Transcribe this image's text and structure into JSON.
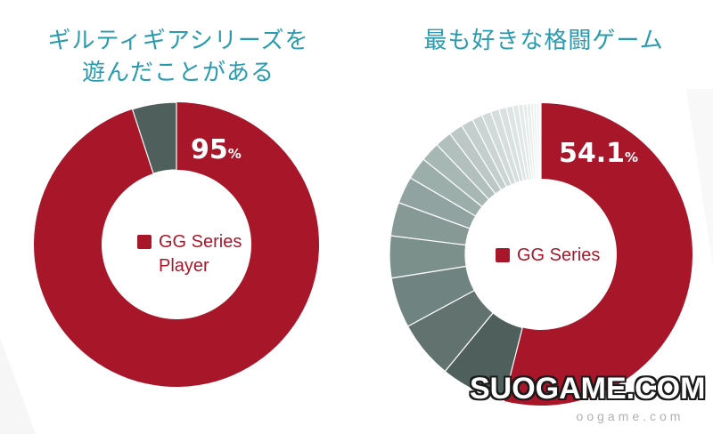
{
  "colors": {
    "title": "#2a9bae",
    "gg_red": "#a8162a",
    "other_dark": "#4f605c"
  },
  "chart_data": [
    {
      "type": "pie",
      "title": "ギルティギアシリーズを遊んだことがある",
      "title_lines": [
        "ギルティギアシリーズを",
        "遊んだことがある"
      ],
      "legend_position": "center",
      "legend": [
        "GG Series",
        "Player"
      ],
      "slices": [
        {
          "name": "GG Series Player",
          "value": 95,
          "color": "#a8162a",
          "label_num": "95",
          "label_unit": "%"
        },
        {
          "name": "",
          "value": 5,
          "color": "#4f605c"
        }
      ]
    },
    {
      "type": "pie",
      "title": "最も好きな格闘ゲーム",
      "legend_position": "center",
      "legend": [
        "GG Series"
      ],
      "slices": [
        {
          "name": "GG Series",
          "value": 54.1,
          "color": "#a8162a",
          "label_num": "54.1",
          "label_unit": "%"
        },
        {
          "name": "",
          "value": 7.0,
          "color": "#4f605c"
        },
        {
          "name": "",
          "value": 6.2,
          "color": "#62736f"
        },
        {
          "name": "",
          "value": 5.4,
          "color": "#6f8480"
        },
        {
          "name": "",
          "value": 4.5,
          "color": "#7b8f8b"
        },
        {
          "name": "",
          "value": 3.6,
          "color": "#869995"
        },
        {
          "name": "",
          "value": 2.9,
          "color": "#91a3a0"
        },
        {
          "name": "",
          "value": 2.4,
          "color": "#9caeaa"
        },
        {
          "name": "",
          "value": 2.1,
          "color": "#a7b7b4"
        },
        {
          "name": "",
          "value": 1.8,
          "color": "#b1c0bd"
        },
        {
          "name": "",
          "value": 1.5,
          "color": "#bbc8c6"
        },
        {
          "name": "",
          "value": 1.3,
          "color": "#c3cfcd"
        },
        {
          "name": "",
          "value": 1.1,
          "color": "#cad5d3"
        },
        {
          "name": "",
          "value": 1.0,
          "color": "#d0dad8"
        },
        {
          "name": "",
          "value": 0.9,
          "color": "#d5dedc"
        },
        {
          "name": "",
          "value": 0.8,
          "color": "#d9e1e0"
        },
        {
          "name": "",
          "value": 0.7,
          "color": "#dde4e3"
        },
        {
          "name": "",
          "value": 0.6,
          "color": "#e0e7e6"
        },
        {
          "name": "",
          "value": 0.5,
          "color": "#e3e9e8"
        },
        {
          "name": "",
          "value": 0.4,
          "color": "#e6ebea"
        },
        {
          "name": "",
          "value": 0.4,
          "color": "#e8edec"
        },
        {
          "name": "",
          "value": 0.3,
          "color": "#eaefee"
        },
        {
          "name": "",
          "value": 0.3,
          "color": "#ecf0ef"
        },
        {
          "name": "",
          "value": 0.3,
          "color": "#eef2f1"
        },
        {
          "name": "",
          "value": 0.2,
          "color": "#f0f3f2"
        }
      ]
    }
  ],
  "watermark": {
    "main": "SUOGAME.COM",
    "sub": "oogame.com"
  }
}
